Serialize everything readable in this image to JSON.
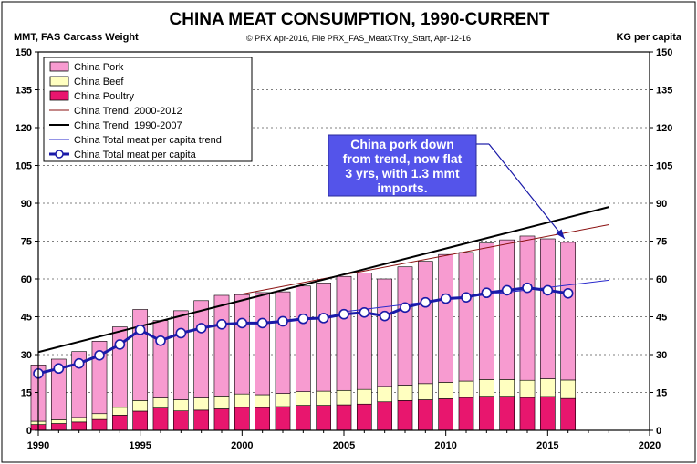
{
  "chart_data": {
    "type": "bar",
    "title": "CHINA MEAT CONSUMPTION, 1990-CURRENT",
    "ylabel_left": "MMT, FAS Carcass Weight",
    "ylabel_right": "KG per capita",
    "source": "© PRX Apr-2016, File PRX_FAS_MeatXTrky_Start, Apr-12-16",
    "ylim": [
      0,
      150
    ],
    "xlim": [
      1990,
      2020
    ],
    "yticks": [
      "0",
      "15",
      "30",
      "45",
      "60",
      "75",
      "90",
      "105",
      "120",
      "135",
      "150"
    ],
    "xticks": [
      "1990",
      "1995",
      "2000",
      "2005",
      "2010",
      "2015",
      "2020"
    ],
    "categories": [
      1990,
      1991,
      1992,
      1993,
      1994,
      1995,
      1996,
      1997,
      1998,
      1999,
      2000,
      2001,
      2002,
      2003,
      2004,
      2005,
      2006,
      2007,
      2008,
      2009,
      2010,
      2011,
      2012,
      2013,
      2014,
      2015,
      2016
    ],
    "series": [
      {
        "name": "China Poultry",
        "type": "bar",
        "color": "#e8166e",
        "values": [
          2.3,
          2.7,
          3.3,
          4.3,
          6.0,
          7.6,
          8.8,
          7.7,
          8.0,
          8.5,
          9.1,
          9.0,
          9.4,
          9.9,
          9.9,
          10.1,
          10.4,
          11.3,
          11.8,
          12.1,
          12.5,
          13.0,
          13.5,
          13.5,
          13.0,
          13.4,
          12.6
        ]
      },
      {
        "name": "China Beef",
        "type": "bar",
        "color": "#ffffc0",
        "values": [
          1.3,
          1.5,
          1.8,
          2.3,
          3.1,
          4.2,
          4.0,
          4.4,
          4.8,
          5.1,
          5.3,
          5.1,
          5.2,
          5.4,
          5.6,
          5.7,
          5.8,
          6.1,
          6.1,
          6.4,
          6.5,
          6.5,
          6.6,
          6.6,
          6.8,
          7.0,
          7.3
        ]
      },
      {
        "name": "China Pork",
        "type": "bar",
        "color": "#f79bd0",
        "values": [
          22.3,
          24.0,
          26.1,
          28.7,
          31.9,
          36.1,
          30.7,
          35.3,
          38.6,
          39.9,
          39.4,
          40.5,
          40.3,
          41.9,
          42.9,
          45.2,
          46.1,
          42.6,
          46.9,
          48.5,
          50.7,
          51.0,
          54.1,
          55.4,
          57.2,
          55.5,
          54.6
        ]
      },
      {
        "name": "China Total meat per capita",
        "type": "line",
        "color": "#1a1aa8",
        "values": [
          22.5,
          24.5,
          26.5,
          29.7,
          34.0,
          39.8,
          35.5,
          38.5,
          40.5,
          42.0,
          42.5,
          42.5,
          43.2,
          44.2,
          44.5,
          46.0,
          46.7,
          45.3,
          48.7,
          50.7,
          52.2,
          52.7,
          54.5,
          55.5,
          56.5,
          55.5,
          54.3
        ]
      },
      {
        "name": "China Trend, 2000-2012",
        "type": "trend",
        "color": "#8a1010",
        "points": [
          [
            2000,
            54.0
          ],
          [
            2018,
            81.5
          ]
        ]
      },
      {
        "name": "China Trend, 1990-2007",
        "type": "trend",
        "color": "#000000",
        "points": [
          [
            1990,
            31.0
          ],
          [
            2018,
            88.5
          ]
        ]
      },
      {
        "name": "China Total meat per capita trend",
        "type": "trend",
        "color": "#2a2acc",
        "points": [
          [
            2005,
            47.0
          ],
          [
            2018,
            59.5
          ]
        ]
      }
    ],
    "legend": {
      "position": "top-left",
      "items": [
        "China Pork",
        "China Beef",
        "China Poultry",
        "China Trend, 2000-2012",
        "China Trend, 1990-2007",
        "China Total meat per capita trend",
        "China Total meat per capita"
      ]
    },
    "annotation": {
      "text": [
        "China pork down",
        "from trend, now flat",
        "3 yrs, with 1.3 mmt",
        "imports."
      ],
      "points_to": [
        2016,
        76.0
      ],
      "position": "upper-right"
    }
  }
}
